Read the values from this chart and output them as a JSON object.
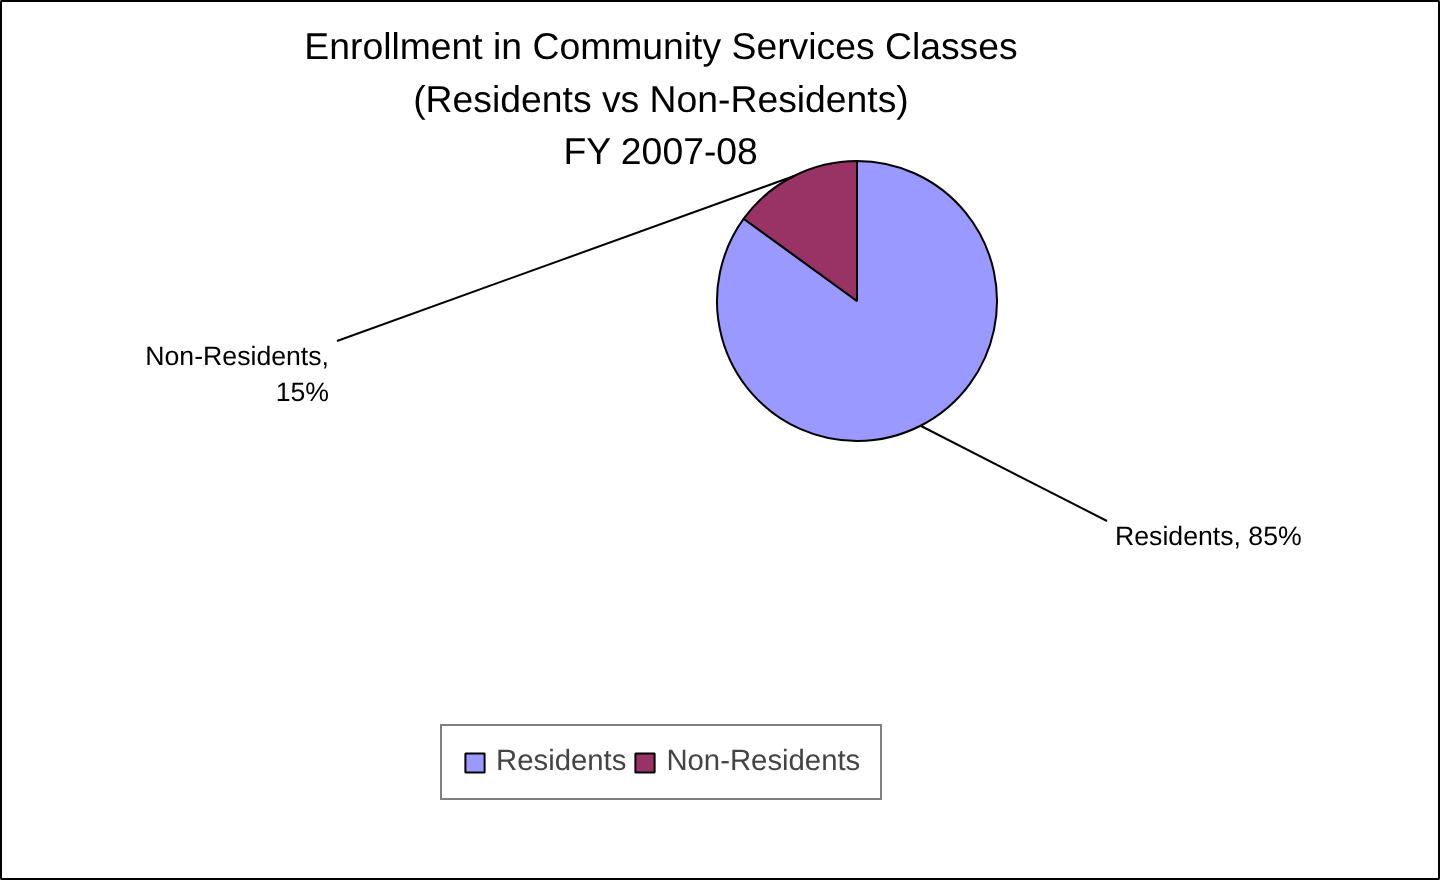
{
  "chart_data": {
    "type": "pie",
    "title": "Enrollment in Community Services Classes\n(Residents vs Non-Residents)\nFY 2007-08",
    "categories": [
      "Residents",
      "Non-Residents"
    ],
    "values": [
      85,
      15
    ],
    "colors": [
      "#9999ff",
      "#993366"
    ],
    "value_labels": [
      "Residents, 85%",
      "Non-Residents, 15%"
    ],
    "legend": "bottom"
  }
}
